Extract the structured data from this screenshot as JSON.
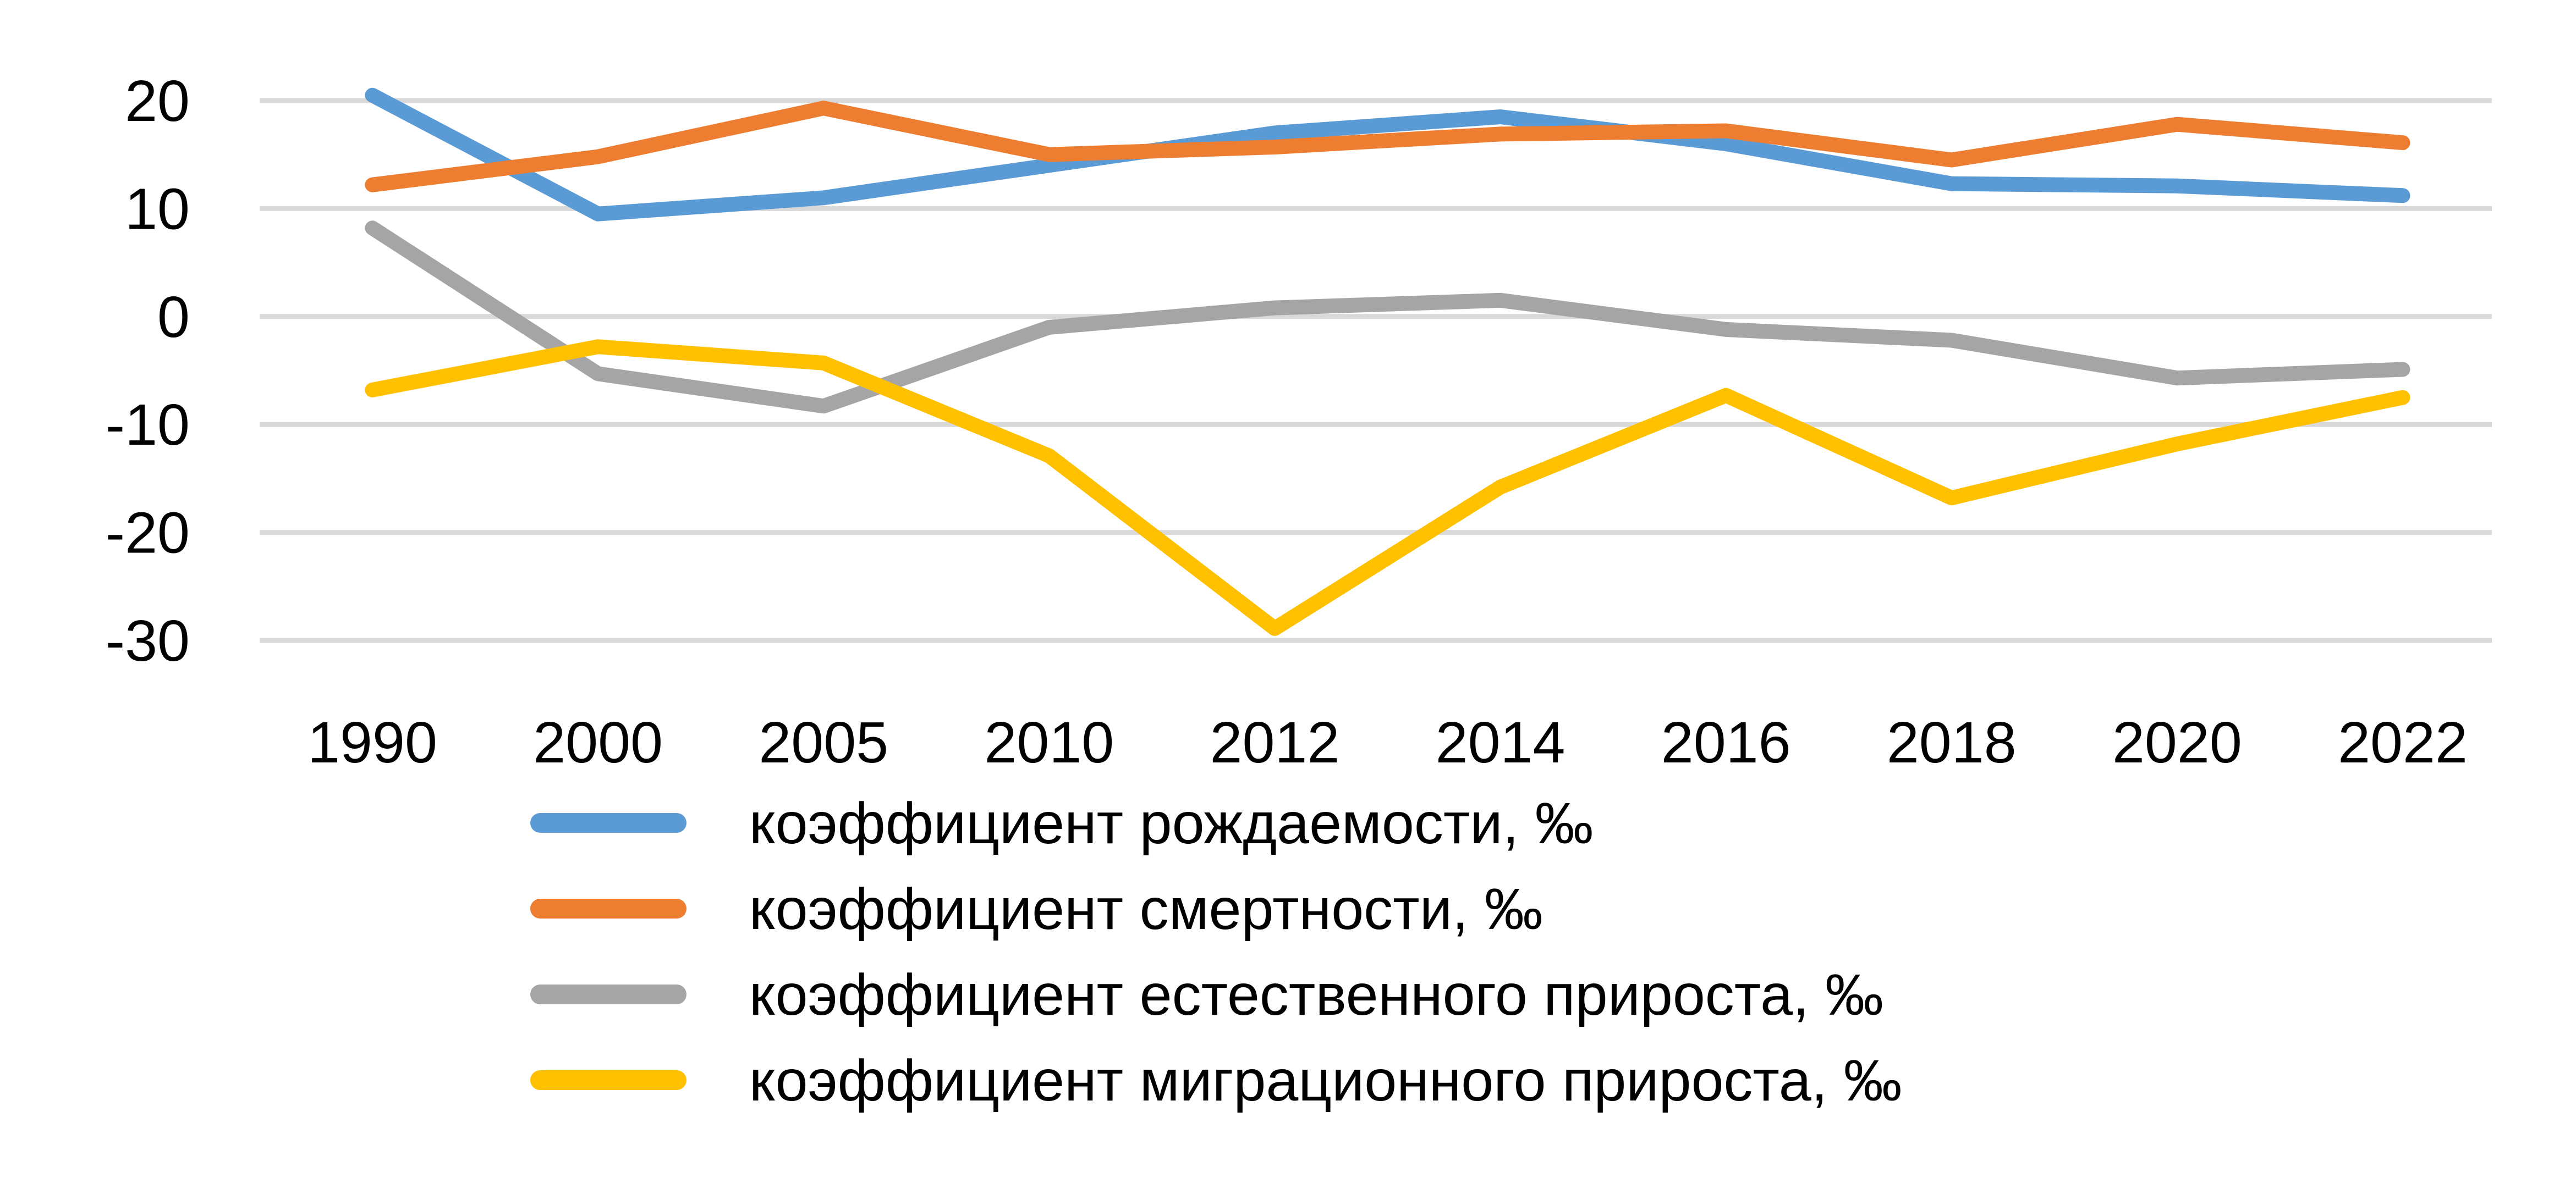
{
  "chart_data": {
    "type": "line",
    "title": "",
    "xlabel": "",
    "ylabel": "",
    "categories": [
      "1990",
      "2000",
      "2005",
      "2010",
      "2012",
      "2014",
      "2016",
      "2018",
      "2020",
      "2022"
    ],
    "y_ticks": [
      20,
      10,
      0,
      -10,
      -20,
      -30
    ],
    "y_tick_labels": [
      "20",
      "10",
      "0",
      "-10",
      "-20",
      "-30"
    ],
    "ylim": [
      -30,
      20
    ],
    "grid": true,
    "legend_position": "bottom",
    "series": [
      {
        "name": "коэффициент рождаемости, ‰",
        "color": "#5b9bd5",
        "values": [
          20.5,
          9.5,
          11.0,
          14.0,
          17.0,
          18.5,
          16.0,
          12.3,
          12.1,
          11.2
        ]
      },
      {
        "name": "коэффициент смертности, ‰",
        "color": "#ed7d31",
        "values": [
          12.2,
          14.8,
          19.3,
          15.0,
          15.7,
          16.9,
          17.2,
          14.5,
          17.8,
          16.1
        ]
      },
      {
        "name": "коэффициент естественного прироста, ‰",
        "color": "#a5a5a5",
        "values": [
          8.2,
          -5.3,
          -8.3,
          -1.0,
          0.8,
          1.5,
          -1.2,
          -2.2,
          -5.7,
          -4.9
        ]
      },
      {
        "name": "коэффициент миграционного прироста, ‰",
        "color": "#ffc000",
        "values": [
          -6.8,
          -2.8,
          -4.3,
          -12.9,
          -28.9,
          -15.8,
          -7.3,
          -16.8,
          -11.8,
          -7.5
        ]
      }
    ]
  }
}
